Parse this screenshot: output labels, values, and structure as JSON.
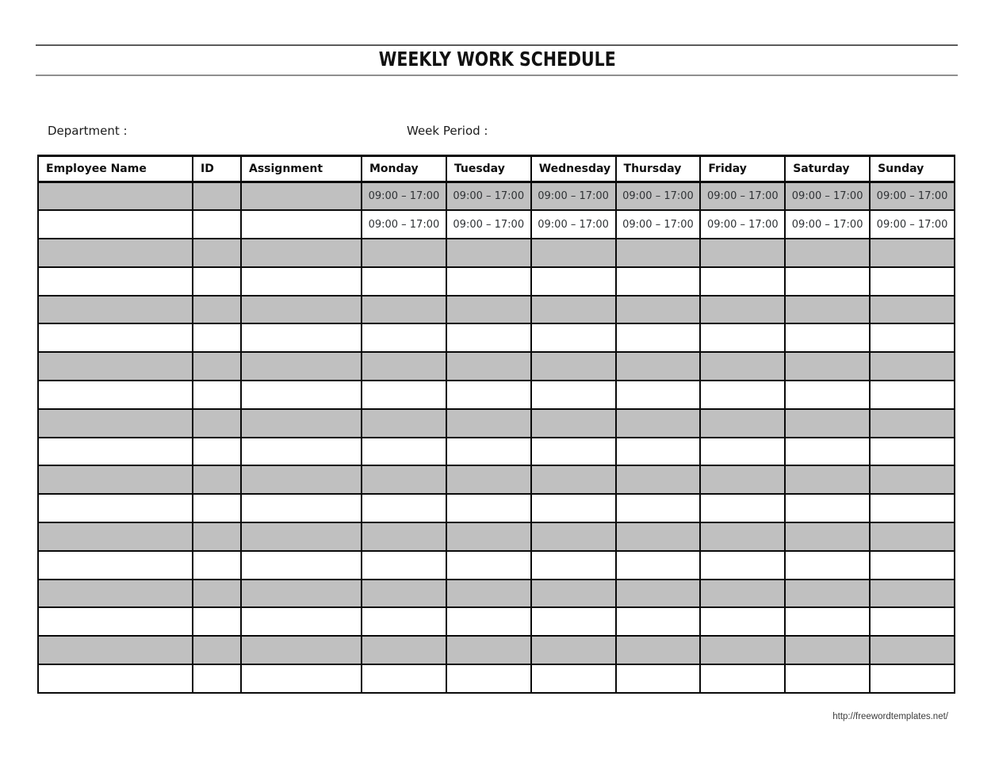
{
  "page": {
    "title": "WEEKLY WORK SCHEDULE",
    "department_label": "Department :",
    "week_period_label": "Week Period :",
    "footer_url": "http://freewordtemplates.net/"
  },
  "table": {
    "headers": [
      "Employee Name",
      "ID",
      "Assignment",
      "Monday",
      "Tuesday",
      "Wednesday",
      "Thursday",
      "Friday",
      "Saturday",
      "Sunday"
    ],
    "time_rows": [
      [
        "",
        "",
        "",
        "09:00 – 17:00",
        "09:00 – 17:00",
        "09:00 – 17:00",
        "09:00 – 17:00",
        "09:00 – 17:00",
        "09:00 – 17:00",
        "09:00 – 17:00"
      ],
      [
        "",
        "",
        "",
        "09:00 – 17:00",
        "09:00 – 17:00",
        "09:00 – 17:00",
        "09:00 – 17:00",
        "09:00 – 17:00",
        "09:00 – 17:00",
        "09:00 – 17:00"
      ]
    ],
    "empty_row_count": 16
  },
  "colors": {
    "row_shade": "#c0c0c0",
    "table_border": "#0a0a0a",
    "rule_top": "#5c5c5c",
    "rule_bottom": "#8f8f8f",
    "footer_text": "#3d3d3d"
  }
}
